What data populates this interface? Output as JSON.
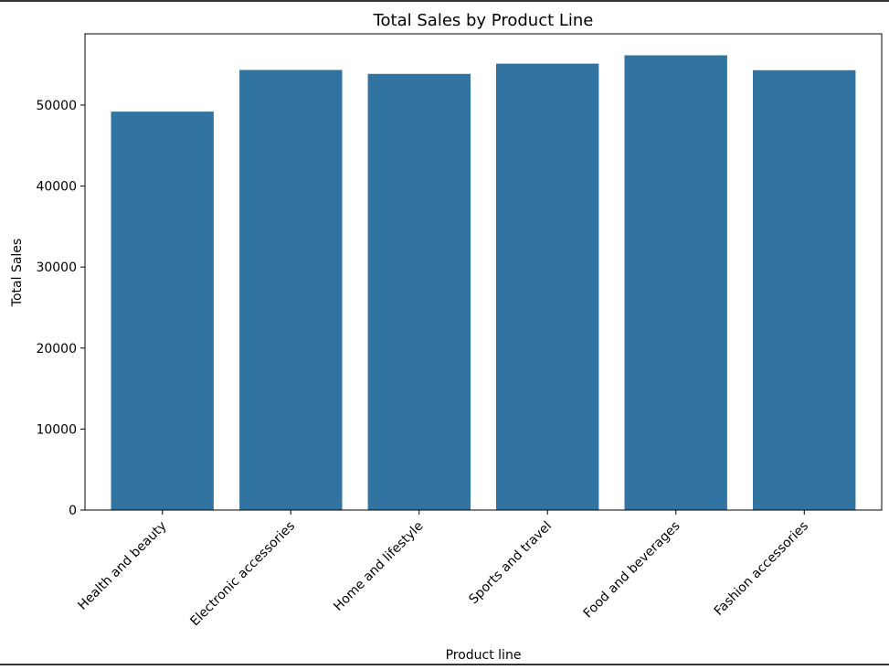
{
  "chart_data": {
    "type": "bar",
    "title": "Total Sales by Product Line",
    "xlabel": "Product line",
    "ylabel": "Total Sales",
    "categories": [
      "Health and beauty",
      "Electronic accessories",
      "Home and lifestyle",
      "Sports and travel",
      "Food and beverages",
      "Fashion accessories"
    ],
    "values": [
      49193.7,
      54337.5,
      53861.9,
      55123.0,
      56144.8,
      54305.9
    ],
    "ylim": [
      0,
      58800
    ],
    "yticks": [
      0,
      10000,
      20000,
      30000,
      40000,
      50000
    ],
    "ytick_labels": [
      "0",
      "10000",
      "20000",
      "30000",
      "40000",
      "50000"
    ],
    "bar_color": "#3274a1",
    "grid": false
  }
}
